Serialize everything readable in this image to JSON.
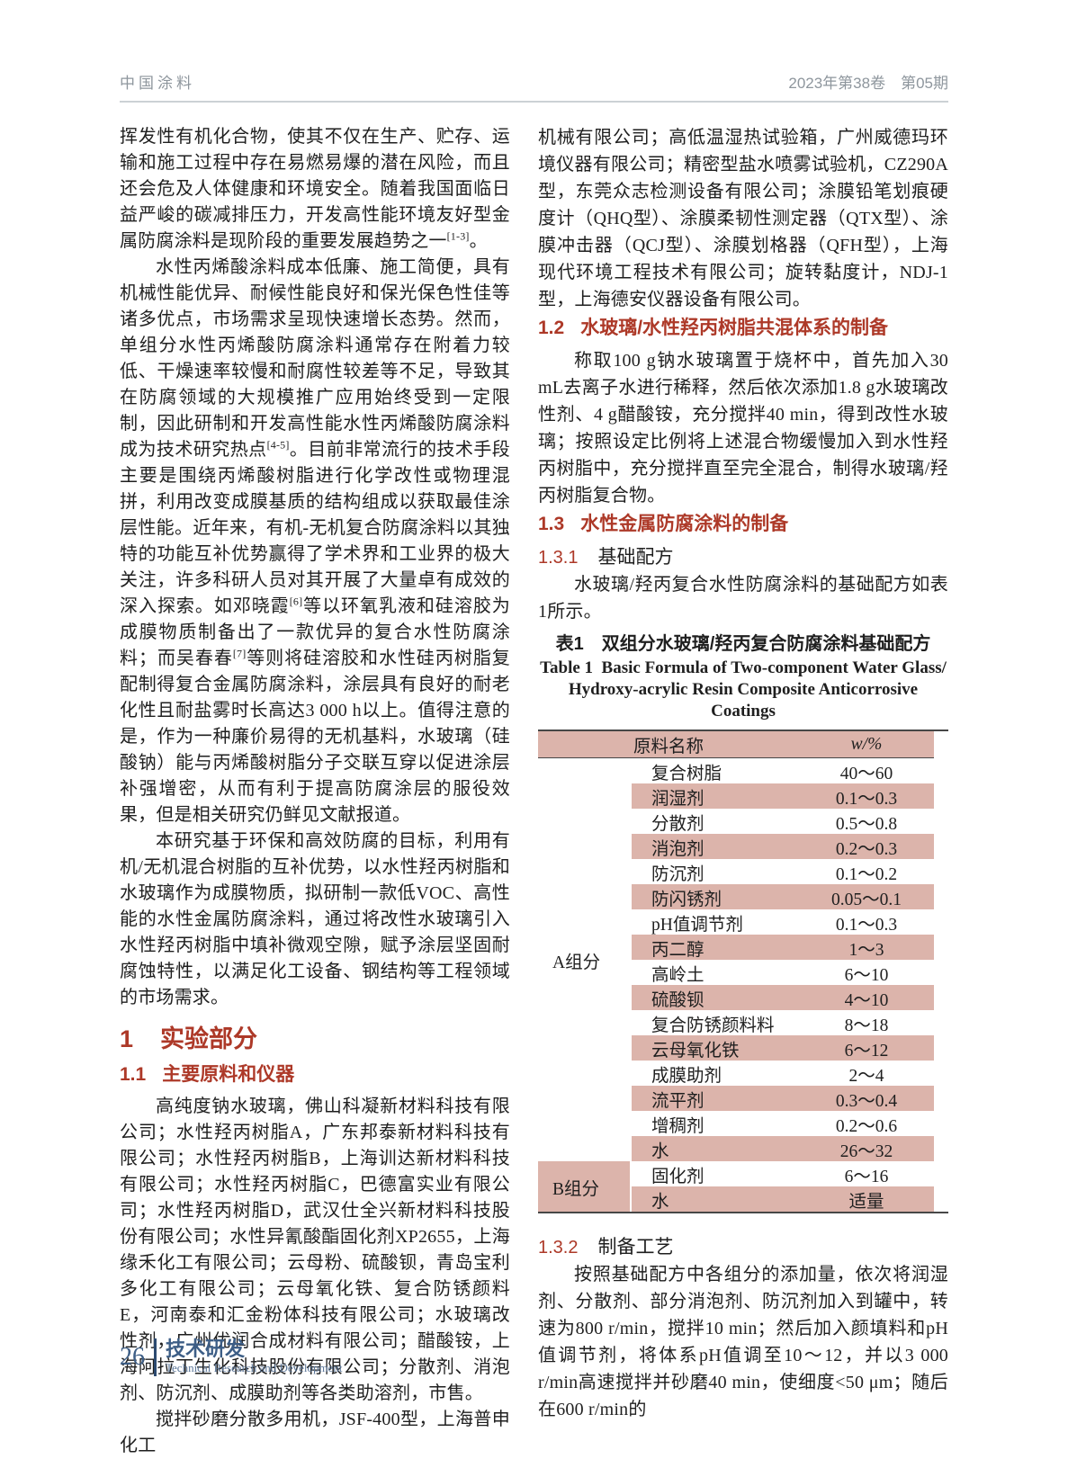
{
  "colors": {
    "accent_red": "#ad3928",
    "stripe_pink": "#dcb4ab",
    "footer_blue": "#3d5e86",
    "footer_bar": "#2c4a70",
    "header_gray": "#8e969d"
  },
  "header": {
    "journal_name": "中国涂料",
    "issue_info": "2023年第38卷　第05期"
  },
  "left_column": {
    "paragraphs": [
      "挥发性有机化合物，使其不仅在生产、贮存、运输和施工过程中存在易燃易爆的潜在风险，而且还会危及人体健康和环境安全。随着我国面临日益严峻的碳减排压力，开发高性能环境友好型金属防腐涂料是现阶段的重要发展趋势之一[1-3]。",
      "水性丙烯酸涂料成本低廉、施工简便，具有机械性能优异、耐候性能良好和保光保色性佳等诸多优点，市场需求呈现快速增长态势。然而，单组分水性丙烯酸防腐涂料通常存在附着力较低、干燥速率较慢和耐腐性较差等不足，导致其在防腐领域的大规模推广应用始终受到一定限制，因此研制和开发高性能水性丙烯酸防腐涂料成为技术研究热点[4-5]。目前非常流行的技术手段主要是围绕丙烯酸树脂进行化学改性或物理混拼，利用改变成膜基质的结构组成以获取最佳涂层性能。近年来，有机-无机复合防腐涂料以其独特的功能互补优势赢得了学术界和工业界的极大关注，许多科研人员对其开展了大量卓有成效的深入探索。如邓晓霞[6]等以环氧乳液和硅溶胶为成膜物质制备出了一款优异的复合水性防腐涂料；而吴春春[7]等则将硅溶胶和水性硅丙树脂复配制得复合金属防腐涂料，涂层具有良好的耐老化性且耐盐雾时长高达3 000 h以上。值得注意的是，作为一种廉价易得的无机基料，水玻璃（硅酸钠）能与丙烯酸树脂分子交联互穿以促进涂层补强增密，从而有利于提高防腐涂层的服役效果，但是相关研究仍鲜见文献报道。",
      "本研究基于环保和高效防腐的目标，利用有机/无机混合树脂的互补优势，以水性羟丙树脂和水玻璃作为成膜物质，拟研制一款低VOC、高性能的水性金属防腐涂料，通过将改性水玻璃引入水性羟丙树脂中填补微观空隙，赋予涂层坚固耐腐蚀特性，以满足化工设备、钢结构等工程领域的市场需求。",
      "高纯度钠水玻璃，佛山科凝新材料科技有限公司；水性羟丙树脂A，广东邦泰新材料科技有限公司；水性羟丙树脂B，上海训达新材料科技有限公司；水性羟丙树脂C，巴德富实业有限公司；水性羟丙树脂D，武汉仕全兴新材料科技股份有限公司；水性异氰酸酯固化剂XP2655，上海缘禾化工有限公司；云母粉、硫酸钡，青岛宝利多化工有限公司；云母氧化铁、复合防锈颜料E，河南泰和汇金粉体科技有限公司；水玻璃改性剂，广州优润合成材料有限公司；醋酸铵，上海阿拉丁生化科技股份有限公司；分散剂、消泡剂、防沉剂、成膜助剂等各类助溶剂，市售。",
      "搅拌砂磨分散多用机，JSF-400型，上海普申化工"
    ],
    "section_1": {
      "number": "1",
      "title": "实验部分"
    },
    "section_1_1": {
      "number": "1.1",
      "title": "主要原料和仪器"
    }
  },
  "right_column": {
    "paragraph_instruments": "机械有限公司；高低温湿热试验箱，广州威德玛环境仪器有限公司；精密型盐水喷雾试验机，CZ290A型，东莞众志检测设备有限公司；涂膜铅笔划痕硬度计（QHQ型）、涂膜柔韧性测定器（QTX型）、涂膜冲击器（QCJ型）、涂膜划格器（QFH型），上海现代环境工程技术有限公司；旋转黏度计，NDJ-1型，上海德安仪器设备有限公司。",
    "section_1_2": {
      "number": "1.2",
      "title": "水玻璃/水性羟丙树脂共混体系的制备"
    },
    "paragraph_1_2": "称取100 g钠水玻璃置于烧杯中，首先加入30 mL去离子水进行稀释，然后依次添加1.8 g水玻璃改性剂、4 g醋酸铵，充分搅拌40 min，得到改性水玻璃；按照设定比例将上述混合物缓慢加入到水性羟丙树脂中，充分搅拌直至完全混合，制得水玻璃/羟丙树脂复合物。",
    "section_1_3": {
      "number": "1.3",
      "title": "水性金属防腐涂料的制备"
    },
    "section_1_3_1": {
      "number": "1.3.1",
      "title": "基础配方"
    },
    "paragraph_1_3_1": "水玻璃/羟丙复合水性防腐涂料的基础配方如表1所示。",
    "section_1_3_2": {
      "number": "1.3.2",
      "title": "制备工艺"
    },
    "paragraph_1_3_2": "按照基础配方中各组分的添加量，依次将润湿剂、分散剂、部分消泡剂、防沉剂加入到罐中，转速为800 r/min，搅拌10 min；然后加入颜填料和pH值调节剂，将体系pH值调至10～12，并以3 000 r/min高速搅拌并砂磨40 min，使细度<50 μm；随后在600 r/min的"
  },
  "table1": {
    "caption_zh": "表1　双组分水玻璃/羟丙复合防腐涂料基础配方",
    "caption_en_line1": "Table 1  Basic Formula of Two-component Water Glass/",
    "caption_en_line2": "Hydroxy-acrylic Resin Composite Anticorrosive Coatings",
    "header": {
      "material": "原料名称",
      "weight": "w/%"
    },
    "groups": [
      {
        "label": "A组分",
        "rows": [
          {
            "material": "复合树脂",
            "weight": "40～60"
          },
          {
            "material": "润湿剂",
            "weight": "0.1～0.3"
          },
          {
            "material": "分散剂",
            "weight": "0.5～0.8"
          },
          {
            "material": "消泡剂",
            "weight": "0.2～0.3"
          },
          {
            "material": "防沉剂",
            "weight": "0.1～0.2"
          },
          {
            "material": "防闪锈剂",
            "weight": "0.05～0.1"
          },
          {
            "material": "pH值调节剂",
            "weight": "0.1～0.3"
          },
          {
            "material": "丙二醇",
            "weight": "1～3"
          },
          {
            "material": "高岭土",
            "weight": "6～10"
          },
          {
            "material": "硫酸钡",
            "weight": "4～10"
          },
          {
            "material": "复合防锈颜料料",
            "weight": "8～18"
          },
          {
            "material": "云母氧化铁",
            "weight": "6～12"
          },
          {
            "material": "成膜助剂",
            "weight": "2～4"
          },
          {
            "material": "流平剂",
            "weight": "0.3～0.4"
          },
          {
            "material": "增稠剂",
            "weight": "0.2～0.6"
          },
          {
            "material": "水",
            "weight": "26～32"
          }
        ]
      },
      {
        "label": "B组分",
        "rows": [
          {
            "material": "固化剂",
            "weight": "6～16"
          },
          {
            "material": "水",
            "weight": "适量"
          }
        ]
      }
    ]
  },
  "footer": {
    "page_number": "26",
    "column_zh": "技术研发",
    "column_en": "Technical Research and Development"
  }
}
